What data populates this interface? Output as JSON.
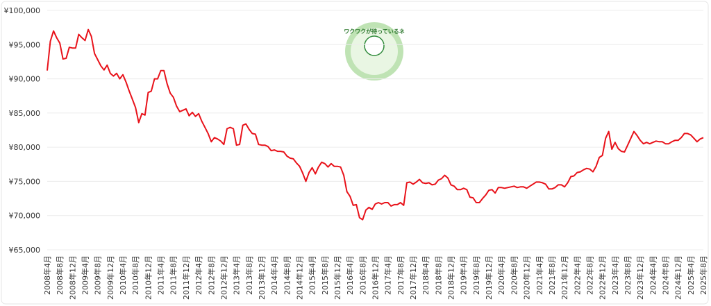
{
  "chart_data": {
    "type": "line",
    "logo_text": "ワクワクが待っているネ",
    "categories": [
      "2008年4月",
      null,
      null,
      null,
      "2008年8月",
      null,
      null,
      null,
      "2008年12月",
      null,
      null,
      null,
      "2009年4月",
      null,
      null,
      null,
      "2009年8月",
      null,
      null,
      null,
      "2009年12月",
      null,
      null,
      null,
      "2010年4月",
      null,
      null,
      null,
      "2010年8月",
      null,
      null,
      null,
      "2010年12月",
      null,
      null,
      null,
      "2011年4月",
      null,
      null,
      null,
      "2011年8月",
      null,
      null,
      null,
      "2011年12月",
      null,
      null,
      null,
      "2012年4月",
      null,
      null,
      null,
      "2012年8月",
      null,
      null,
      null,
      "2012年12月",
      null,
      null,
      null,
      "2013年4月",
      null,
      null,
      null,
      "2013年8月",
      null,
      null,
      null,
      "2013年12月",
      null,
      null,
      null,
      "2014年4月",
      null,
      null,
      null,
      "2014年8月",
      null,
      null,
      null,
      "2014年12月",
      null,
      null,
      null,
      "2015年4月",
      null,
      null,
      null,
      "2015年8月",
      null,
      null,
      null,
      "2015年12月",
      null,
      null,
      null,
      "2016年4月",
      null,
      null,
      null,
      "2016年8月",
      null,
      null,
      null,
      "2016年12月",
      null,
      null,
      null,
      "2017年4月",
      null,
      null,
      null,
      "2017年8月",
      null,
      null,
      null,
      "2017年12月",
      null,
      null,
      null,
      "2018年4月",
      null,
      null,
      null,
      "2018年8月",
      null,
      null,
      null,
      "2018年12月",
      null,
      null,
      null,
      "2019年4月",
      null,
      null,
      null,
      "2019年8月",
      null,
      null,
      null,
      "2019年12月",
      null,
      null,
      null,
      "2020年4月",
      null,
      null,
      null,
      "2020年8月",
      null,
      null,
      null,
      "2020年12月",
      null,
      null,
      null,
      "2021年4月",
      null,
      null,
      null,
      "2021年8月",
      null,
      null,
      null,
      "2021年12月",
      null,
      null,
      null,
      "2022年4月",
      null,
      null,
      null,
      "2022年8月",
      null,
      null,
      null,
      "2022年12月",
      null,
      null,
      null,
      "2023年4月",
      null,
      null,
      null,
      "2023年8月",
      null,
      null,
      null,
      "2023年12月",
      null,
      null,
      null,
      "2024年4月",
      null,
      null,
      null,
      "2024年8月",
      null,
      null,
      null,
      "2024年12月",
      null,
      null,
      null,
      "2025年4月",
      null,
      null,
      null,
      "2025年8月"
    ],
    "series": [
      {
        "color": "#e8121a",
        "values": [
          91200,
          95500,
          97000,
          96000,
          95200,
          92900,
          93000,
          94600,
          94500,
          94500,
          96500,
          96000,
          95600,
          97200,
          96200,
          93700,
          92800,
          91900,
          91300,
          92000,
          90800,
          90400,
          90800,
          90000,
          90600,
          89500,
          88200,
          87000,
          85800,
          83600,
          84900,
          84700,
          88000,
          88200,
          90000,
          90000,
          91200,
          91200,
          89300,
          87900,
          87300,
          86000,
          85200,
          85400,
          85600,
          84600,
          85100,
          84500,
          84900,
          83800,
          82900,
          82000,
          80800,
          81400,
          81200,
          80900,
          80400,
          82700,
          82900,
          82700,
          80300,
          80400,
          83200,
          83400,
          82600,
          82000,
          81900,
          80400,
          80300,
          80300,
          80100,
          79500,
          79600,
          79400,
          79400,
          79300,
          78700,
          78400,
          78300,
          77700,
          77200,
          76200,
          75000,
          76300,
          77000,
          76100,
          77100,
          77800,
          77600,
          77100,
          77600,
          77200,
          77200,
          77100,
          75900,
          73500,
          72800,
          71500,
          71600,
          69700,
          69400,
          70800,
          71200,
          70900,
          71700,
          71900,
          71700,
          71900,
          71900,
          71400,
          71600,
          71600,
          71900,
          71500,
          74800,
          74900,
          74600,
          74900,
          75300,
          74800,
          74700,
          74800,
          74500,
          74600,
          75200,
          75400,
          75900,
          75500,
          74500,
          74300,
          73800,
          73800,
          74000,
          73800,
          72700,
          72600,
          71900,
          71900,
          72500,
          73000,
          73700,
          73800,
          73300,
          74100,
          74100,
          74000,
          74100,
          74200,
          74300,
          74100,
          74200,
          74200,
          74000,
          74300,
          74600,
          74900,
          74900,
          74800,
          74600,
          73900,
          73900,
          74100,
          74500,
          74500,
          74200,
          74800,
          75700,
          75800,
          76300,
          76400,
          76700,
          76900,
          76800,
          76400,
          77200,
          78500,
          78800,
          81300,
          82300,
          79700,
          80700,
          79800,
          79400,
          79300,
          80300,
          81300,
          82300,
          81700,
          81000,
          80500,
          80700,
          80500,
          80700,
          80900,
          80800,
          80800,
          80500,
          80500,
          80800,
          81000,
          81000,
          81400,
          82000,
          82000,
          81800,
          81300,
          80800,
          81200,
          81400
        ]
      }
    ],
    "ylim": [
      65000,
      100000
    ],
    "yticks": [
      {
        "value": 65000,
        "label": "¥65,000"
      },
      {
        "value": 70000,
        "label": "¥70,000"
      },
      {
        "value": 75000,
        "label": "¥75,000"
      },
      {
        "value": 80000,
        "label": "¥80,000"
      },
      {
        "value": 85000,
        "label": "¥85,000"
      },
      {
        "value": 90000,
        "label": "¥90,000"
      },
      {
        "value": 95000,
        "label": "¥95,000"
      },
      {
        "value": 100000,
        "label": "¥100,000"
      }
    ],
    "grid": true
  }
}
